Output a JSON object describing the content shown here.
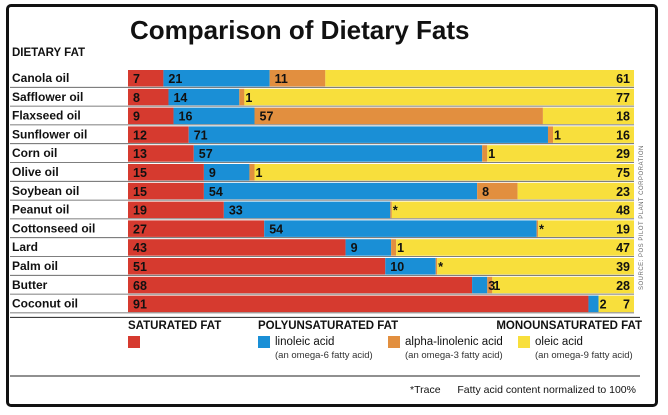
{
  "colors": {
    "saturated": "#d63a2f",
    "linoleic": "#1a8fd6",
    "alpha_linolenic": "#e28f3f",
    "oleic": "#f8df3c",
    "row_line": "#555555"
  },
  "chart_data": {
    "type": "bar",
    "stacked": true,
    "orientation": "horizontal",
    "title": "Comparison of Dietary Fats",
    "row_header": "DIETARY FAT",
    "categories": [
      "Canola oil",
      "Safflower oil",
      "Flaxseed oil",
      "Sunflower oil",
      "Corn oil",
      "Olive oil",
      "Soybean oil",
      "Peanut oil",
      "Cottonseed oil",
      "Lard",
      "Palm oil",
      "Butter",
      "Coconut oil"
    ],
    "series": [
      {
        "key": "saturated",
        "name": "SATURATED FAT",
        "values": [
          7,
          8,
          9,
          12,
          13,
          15,
          15,
          19,
          27,
          43,
          51,
          68,
          91
        ]
      },
      {
        "key": "linoleic",
        "name": "linoleic acid",
        "values": [
          21,
          14,
          16,
          71,
          57,
          9,
          54,
          33,
          54,
          9,
          10,
          3,
          2
        ]
      },
      {
        "key": "alpha_linolenic",
        "name": "alpha-linolenic acid",
        "values": [
          11,
          1,
          57,
          1,
          1,
          1,
          8,
          0.3,
          0.3,
          1,
          0.3,
          1,
          0
        ]
      },
      {
        "key": "oleic",
        "name": "oleic acid",
        "values": [
          61,
          77,
          18,
          16,
          29,
          75,
          23,
          48,
          19,
          47,
          39,
          28,
          7
        ]
      }
    ],
    "value_labels": [
      [
        "7",
        "21",
        "11",
        "61"
      ],
      [
        "8",
        "14",
        "1",
        "77"
      ],
      [
        "9",
        "16",
        "57",
        "18"
      ],
      [
        "12",
        "71",
        "1",
        "16"
      ],
      [
        "13",
        "57",
        "1",
        "29"
      ],
      [
        "15",
        "9",
        "1",
        "75"
      ],
      [
        "15",
        "54",
        "8",
        "23"
      ],
      [
        "19",
        "33",
        "*",
        "48"
      ],
      [
        "27",
        "54",
        "*",
        "19"
      ],
      [
        "43",
        "9",
        "1",
        "47"
      ],
      [
        "51",
        "10",
        "*",
        "39"
      ],
      [
        "68",
        "3",
        "1",
        "28"
      ],
      [
        "91",
        "2",
        "",
        "7"
      ]
    ],
    "xlim": [
      0,
      100
    ],
    "legend": {
      "group_saturated": "SATURATED FAT",
      "group_poly": "POLYUNSATURATED FAT",
      "group_mono": "MONOUNSATURATED FAT",
      "items": [
        {
          "key": "saturated",
          "label": "",
          "sub": ""
        },
        {
          "key": "linoleic",
          "label": "linoleic acid",
          "sub": "(an omega-6 fatty acid)"
        },
        {
          "key": "alpha_linolenic",
          "label": "alpha-linolenic acid",
          "sub": "(an omega-3 fatty acid)"
        },
        {
          "key": "oleic",
          "label": "oleic acid",
          "sub": "(an omega-9 fatty acid)"
        }
      ]
    },
    "footnote_trace": "*Trace",
    "footnote_normalized": "Fatty acid content normalized to 100%",
    "source": "SOURCE: POS PILOT PLANT CORPORATION"
  }
}
